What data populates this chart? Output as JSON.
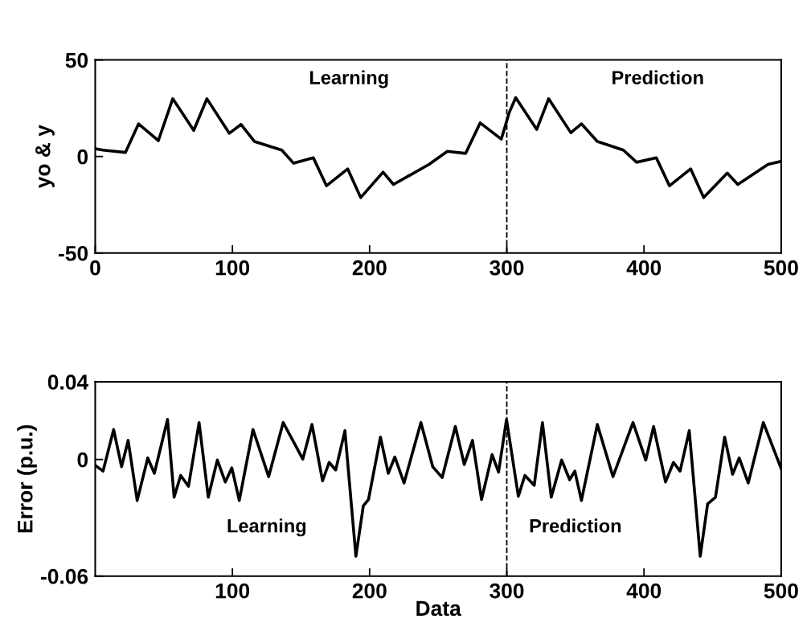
{
  "chart_data": [
    {
      "type": "line",
      "ylabel": "yo & y",
      "xlim": [
        0,
        500
      ],
      "xticks": [
        0,
        100,
        200,
        300,
        400,
        500
      ],
      "ylim": [
        -50,
        50
      ],
      "yticks": [
        -50,
        0,
        50
      ],
      "grid": false,
      "legend": false,
      "line_style": "solid",
      "marker": "none",
      "annotations": [
        "Learning",
        "Prediction"
      ],
      "ref_lines": [
        {
          "axis": "x",
          "value": 300,
          "label": null,
          "color": "#000000",
          "line_style": "dashed"
        }
      ],
      "series": [
        {
          "color": "#000000",
          "x": [
            0,
            5.7,
            22,
            31.6,
            46,
            56.5,
            61.3,
            71.8,
            81.4,
            97.7,
            106.3,
            116,
            136,
            144.6,
            159,
            168.6,
            184,
            193.5,
            209.8,
            217.4,
            243.3,
            256.7,
            270,
            280.6,
            296,
            301.7,
            306.5,
            321.8,
            330.5,
            346.7,
            354.4,
            366,
            385,
            394.6,
            409,
            418.6,
            434,
            443.5,
            460.7,
            468.4,
            490.4,
            500
          ],
          "values": [
            4,
            3.3,
            2.1,
            16.9,
            8.2,
            29.9,
            24.8,
            13.5,
            29.9,
            12,
            16.6,
            7.8,
            3.3,
            -3.5,
            -0.7,
            -15.2,
            -6.4,
            -21.3,
            -8.1,
            -14.5,
            -4.1,
            2.7,
            1.6,
            17.4,
            9,
            22.6,
            30.5,
            14,
            29.9,
            12.3,
            16.9,
            7.8,
            3.3,
            -3,
            -0.7,
            -15.2,
            -6.4,
            -21.3,
            -8.6,
            -14.5,
            -4.1,
            -2.5
          ]
        }
      ]
    },
    {
      "type": "line",
      "ylabel": "Error (p.u.)",
      "xlabel": "Data",
      "xlim": [
        0,
        500
      ],
      "xticks": [
        100,
        200,
        300,
        400,
        500
      ],
      "ylim": [
        -0.06,
        0.04
      ],
      "yticks": [
        -0.06,
        0,
        0.04
      ],
      "grid": false,
      "legend": false,
      "line_style": "solid",
      "marker": "none",
      "annotations": [
        "Learning",
        "Prediction"
      ],
      "ref_lines": [
        {
          "axis": "x",
          "value": 300,
          "label": null,
          "color": "#000000",
          "line_style": "dashed"
        }
      ],
      "series": [
        {
          "color": "#000000",
          "x": [
            0,
            5.7,
            13.4,
            19.2,
            24,
            30.6,
            38.3,
            43.1,
            52.7,
            57.5,
            62.3,
            68,
            75.7,
            82.4,
            89,
            94.8,
            99.6,
            105,
            115,
            126.4,
            137,
            151.3,
            158,
            165.7,
            170.5,
            175.3,
            182,
            190,
            195.4,
            199.2,
            207.9,
            213.6,
            218.4,
            225.1,
            237.4,
            246,
            252.9,
            262.5,
            269,
            275,
            281.6,
            289.3,
            294,
            299.8,
            308.4,
            313.2,
            320,
            326,
            332.4,
            340,
            345.8,
            349.6,
            354.4,
            366,
            377.4,
            392,
            401.3,
            407,
            415.7,
            421.5,
            426.3,
            433,
            441,
            446.4,
            452.1,
            458.8,
            464.6,
            469.4,
            476,
            487,
            500
          ],
          "values": [
            -0.003,
            -0.006,
            0.0154,
            -0.0037,
            0.0098,
            -0.0211,
            0.0008,
            -0.0071,
            0.0206,
            -0.0194,
            -0.0082,
            -0.0138,
            0.019,
            -0.0194,
            -0.0003,
            -0.0116,
            -0.0043,
            -0.0211,
            0.0154,
            -0.0088,
            0.019,
            0.0002,
            0.018,
            -0.011,
            -0.0015,
            -0.0054,
            0.0148,
            -0.0498,
            -0.0239,
            -0.0206,
            0.0115,
            -0.0071,
            0.0013,
            -0.0121,
            0.019,
            -0.0037,
            -0.0093,
            0.017,
            -0.0026,
            0.0098,
            -0.0206,
            0.0025,
            -0.0065,
            0.0206,
            -0.0189,
            -0.0082,
            -0.0133,
            0.019,
            -0.0194,
            -0.0003,
            -0.0104,
            -0.006,
            -0.0211,
            0.018,
            -0.0088,
            0.019,
            -0.0003,
            0.017,
            -0.0116,
            -0.0015,
            -0.006,
            0.0148,
            -0.0498,
            -0.0228,
            -0.0194,
            0.0115,
            -0.0076,
            0.0008,
            -0.0121,
            0.019,
            -0.0047
          ]
        }
      ]
    }
  ]
}
